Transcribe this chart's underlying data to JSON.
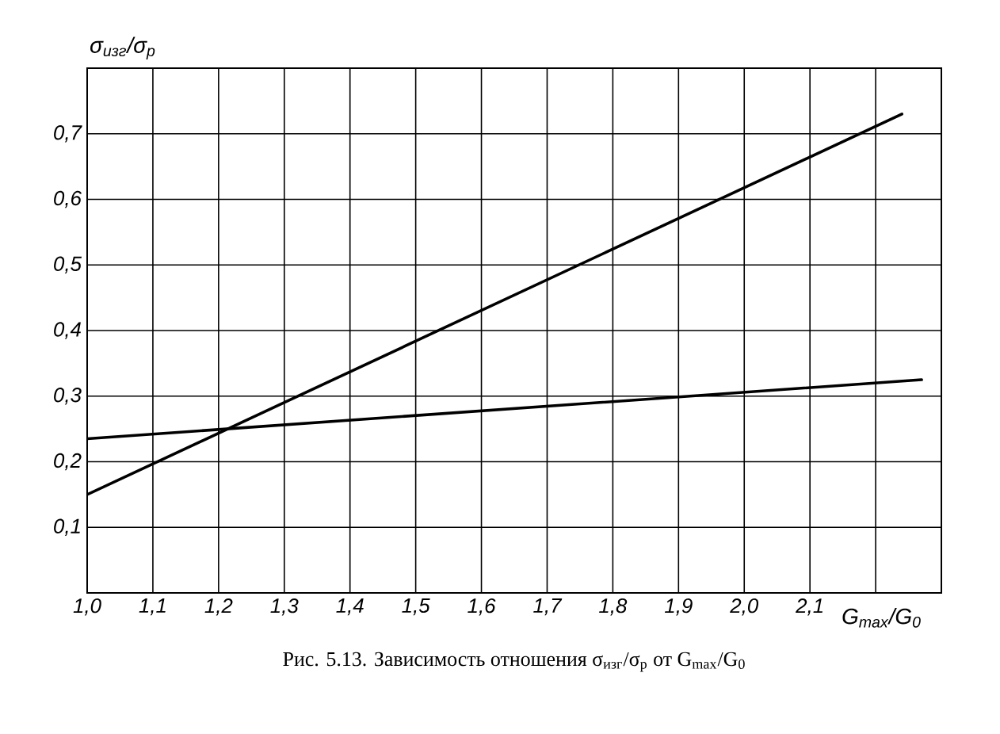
{
  "chart_data": {
    "type": "line",
    "xlabel": "G$_{max}$/G$_{0}$",
    "ylabel": "σ$_{изг}$/σ$_{р}$",
    "annotations": [
      "Рис. 5.13. Зависимость отношения σ$_{изг}$/σ$_{р}$ от G$_{max}$/G$_{0}$"
    ],
    "series": [
      {
        "color": "#000000",
        "x": [
          1.0,
          2.24
        ],
        "values": [
          0.15,
          0.73
        ]
      },
      {
        "color": "#000000",
        "x": [
          1.0,
          2.27
        ],
        "values": [
          0.235,
          0.325
        ]
      }
    ],
    "xlim": [
      1.0,
      2.3
    ],
    "ylim": [
      0,
      0.8
    ],
    "xticks": [
      {
        "value": 1.0,
        "label": "1,0"
      },
      {
        "value": 1.1,
        "label": "1,1"
      },
      {
        "value": 1.2,
        "label": "1,2"
      },
      {
        "value": 1.3,
        "label": "1,3"
      },
      {
        "value": 1.4,
        "label": "1,4"
      },
      {
        "value": 1.5,
        "label": "1,5"
      },
      {
        "value": 1.6,
        "label": "1,6"
      },
      {
        "value": 1.7,
        "label": "1,7"
      },
      {
        "value": 1.8,
        "label": "1,8"
      },
      {
        "value": 1.9,
        "label": "1,9"
      },
      {
        "value": 2.0,
        "label": "2,0"
      },
      {
        "value": 2.1,
        "label": "2,1"
      },
      {
        "value": 2.2,
        "label": null
      },
      {
        "value": 2.3,
        "label": null
      }
    ],
    "yticks": [
      {
        "value": 0,
        "label": null
      },
      {
        "value": 0.1,
        "label": "0,1"
      },
      {
        "value": 0.2,
        "label": "0,2"
      },
      {
        "value": 0.3,
        "label": "0,3"
      },
      {
        "value": 0.4,
        "label": "0,4"
      },
      {
        "value": 0.5,
        "label": "0,5"
      },
      {
        "value": 0.6,
        "label": "0,6"
      },
      {
        "value": 0.7,
        "label": "0,7"
      },
      {
        "value": 0.8,
        "label": null
      }
    ],
    "grid": true,
    "marker": "none"
  }
}
